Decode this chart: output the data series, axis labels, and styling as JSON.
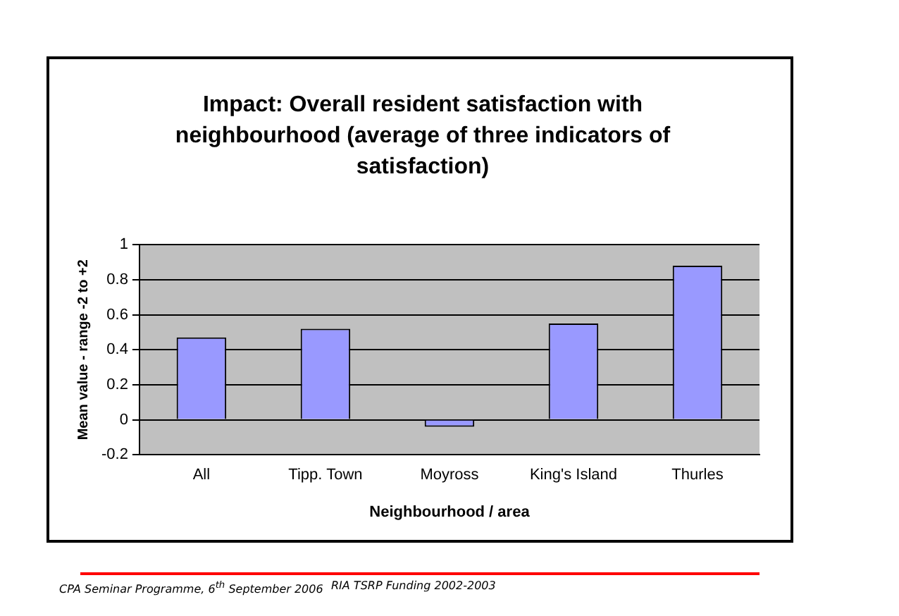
{
  "chart_data": {
    "type": "bar",
    "title": "Impact: Overall resident satisfaction with neighbourhood (average of three indicators of satisfaction)",
    "xlabel": "Neighbourhood / area",
    "ylabel": "Mean value - range -2 to +2",
    "categories": [
      "All",
      "Tipp. Town",
      "Moyross",
      "King's Island",
      "Thurles"
    ],
    "values": [
      0.47,
      0.52,
      -0.04,
      0.55,
      0.88
    ],
    "color": "#9999ff",
    "ylim": [
      -0.2,
      1
    ],
    "yticks": [
      -0.2,
      0,
      0.2,
      0.4,
      0.6,
      0.8,
      1
    ],
    "grid": "y",
    "legend": false,
    "annotations": [
      "CPA Seminar Programme, 6$^{th}$ September 2006",
      "RIA TSRP Funding 2002-2003"
    ]
  }
}
